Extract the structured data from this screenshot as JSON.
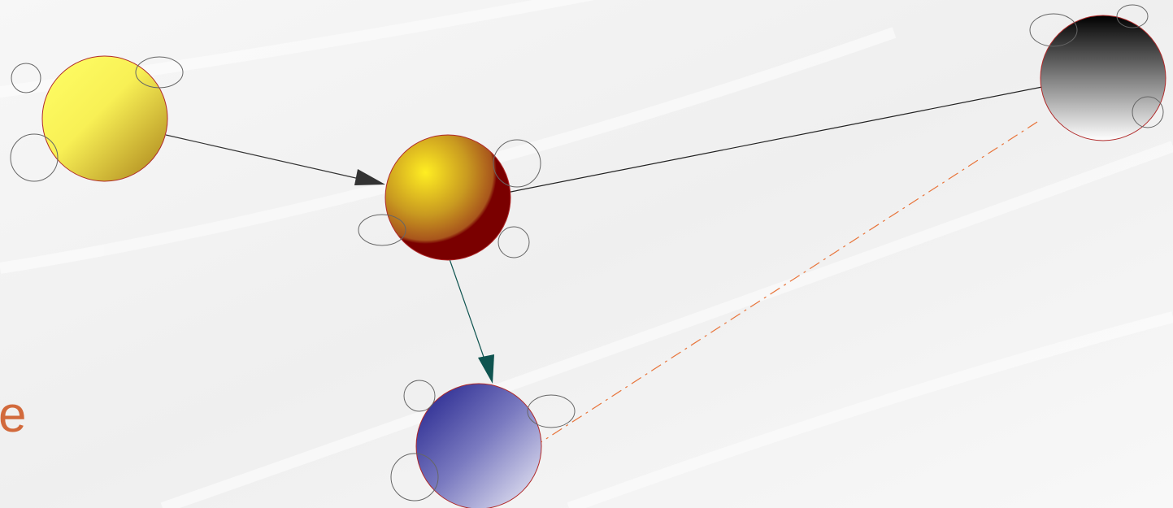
{
  "slide": {
    "edge_text": "e"
  },
  "nodes": [
    {
      "id": "yellow",
      "color_top": "#ffff66",
      "color_bottom": "#b3861a",
      "outline": "#b02a2a"
    },
    {
      "id": "orange",
      "color_top": "#ffee22",
      "color_bottom": "#7a0000",
      "outline": "#b02a2a"
    },
    {
      "id": "blue",
      "color_top": "#2a2a96",
      "color_bottom": "#e8e8f4",
      "outline": "#b02a2a"
    },
    {
      "id": "black",
      "color_top": "#000000",
      "color_bottom": "#ffffff",
      "outline": "#b02a2a"
    }
  ],
  "edges": [
    {
      "from": "yellow",
      "to": "orange",
      "color": "#333333",
      "style": "solid",
      "arrow": true
    },
    {
      "from": "orange",
      "to": "black",
      "color": "#222222",
      "style": "solid",
      "arrow": false
    },
    {
      "from": "orange",
      "to": "blue",
      "color": "#0f5450",
      "style": "solid",
      "arrow": true
    },
    {
      "from": "black",
      "to": "blue",
      "color": "#e8743a",
      "style": "dash-dot",
      "arrow": false
    }
  ]
}
